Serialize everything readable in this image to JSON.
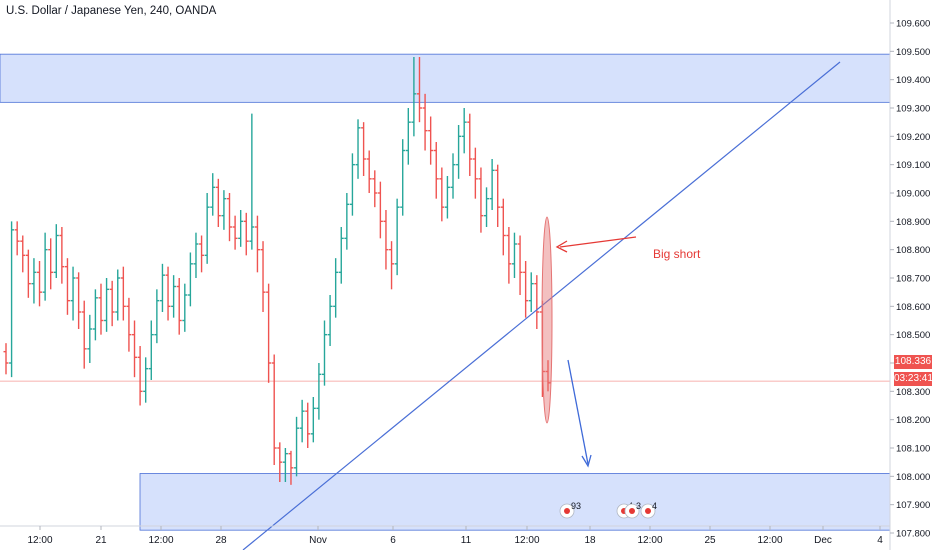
{
  "header": {
    "title": "U.S. Dollar / Japanese Yen, 240, OANDA"
  },
  "annotations": {
    "big_short": "Big short"
  },
  "price_readout": {
    "current": "108.336",
    "countdown": "03:23:41"
  },
  "colors": {
    "up": "#26a69a",
    "down": "#ef5350",
    "zone_fill": "#cfdcfb",
    "zone_stroke": "#4a6fd6",
    "trendline": "#4a6fd6",
    "arrow_red": "#e53935",
    "arrow_blue": "#3f6ad8",
    "marker": "#e57373"
  },
  "chart_data": {
    "type": "candlestick",
    "title": "U.S. Dollar / Japanese Yen, 240, OANDA",
    "ylim": [
      107.75,
      109.65
    ],
    "y_ticks": [
      "107.800",
      "107.900",
      "108.000",
      "108.100",
      "108.200",
      "108.300",
      "108.400",
      "108.500",
      "108.600",
      "108.700",
      "108.800",
      "108.900",
      "109.000",
      "109.100",
      "109.200",
      "109.300",
      "109.400",
      "109.500",
      "109.600"
    ],
    "x_ticks": [
      "12:00",
      "21",
      "12:00",
      "28",
      "Nov",
      "6",
      "11",
      "12:00",
      "18",
      "12:00",
      "25",
      "12:00",
      "Dec",
      "4"
    ],
    "grid": false,
    "price_line": 108.336,
    "zones": [
      {
        "name": "resistance",
        "low": 109.32,
        "high": 109.49
      },
      {
        "name": "support",
        "low": 107.81,
        "high": 108.01
      }
    ],
    "trendline": {
      "from": {
        "x": "28 Oct",
        "y": 107.7
      },
      "to": {
        "x": "28 Nov",
        "y": 109.45
      }
    },
    "event_markers": [
      {
        "label": "9",
        "sub": "3"
      },
      {
        "label": "4",
        "sub": ""
      },
      {
        "label": "3",
        "sub": ""
      },
      {
        "label": "4",
        "sub": ""
      }
    ],
    "series": [
      {
        "values": [
          [
            108.44,
            108.4,
            108.47,
            108.36
          ],
          [
            108.4,
            108.87,
            108.9,
            108.35
          ],
          [
            108.87,
            108.83,
            108.9,
            108.78
          ],
          [
            108.83,
            108.78,
            108.85,
            108.72
          ],
          [
            108.78,
            108.68,
            108.8,
            108.63
          ],
          [
            108.68,
            108.72,
            108.77,
            108.61
          ],
          [
            108.72,
            108.65,
            108.76,
            108.6
          ],
          [
            108.65,
            108.8,
            108.86,
            108.62
          ],
          [
            108.8,
            108.72,
            108.84,
            108.66
          ],
          [
            108.72,
            108.85,
            108.89,
            108.7
          ],
          [
            108.85,
            108.74,
            108.88,
            108.68
          ],
          [
            108.74,
            108.62,
            108.77,
            108.57
          ],
          [
            108.62,
            108.7,
            108.74,
            108.55
          ],
          [
            108.7,
            108.58,
            108.72,
            108.52
          ],
          [
            108.58,
            108.45,
            108.62,
            108.38
          ],
          [
            108.45,
            108.52,
            108.57,
            108.4
          ],
          [
            108.52,
            108.63,
            108.66,
            108.48
          ],
          [
            108.63,
            108.55,
            108.68,
            108.5
          ],
          [
            108.55,
            108.66,
            108.7,
            108.51
          ],
          [
            108.66,
            108.58,
            108.69,
            108.53
          ],
          [
            108.58,
            108.7,
            108.73,
            108.55
          ],
          [
            108.7,
            108.6,
            108.74,
            108.55
          ],
          [
            108.6,
            108.5,
            108.63,
            108.44
          ],
          [
            108.5,
            108.42,
            108.55,
            108.35
          ],
          [
            108.42,
            108.3,
            108.46,
            108.25
          ],
          [
            108.3,
            108.38,
            108.42,
            108.26
          ],
          [
            108.38,
            108.5,
            108.55,
            108.34
          ],
          [
            108.5,
            108.62,
            108.66,
            108.47
          ],
          [
            108.62,
            108.71,
            108.75,
            108.58
          ],
          [
            108.71,
            108.6,
            108.74,
            108.55
          ],
          [
            108.6,
            108.67,
            108.71,
            108.56
          ],
          [
            108.67,
            108.55,
            108.7,
            108.5
          ],
          [
            108.55,
            108.64,
            108.68,
            108.51
          ],
          [
            108.64,
            108.75,
            108.79,
            108.6
          ],
          [
            108.75,
            108.82,
            108.86,
            108.7
          ],
          [
            108.82,
            108.78,
            108.85,
            108.72
          ],
          [
            108.78,
            108.95,
            109.0,
            108.75
          ],
          [
            108.95,
            109.02,
            109.07,
            108.92
          ],
          [
            109.02,
            108.92,
            109.05,
            108.88
          ],
          [
            108.92,
            108.98,
            109.01,
            108.87
          ],
          [
            108.98,
            108.88,
            109.0,
            108.83
          ],
          [
            108.88,
            108.84,
            108.92,
            108.8
          ],
          [
            108.84,
            108.9,
            108.94,
            108.81
          ],
          [
            108.9,
            108.83,
            108.93,
            108.78
          ],
          [
            108.83,
            108.88,
            109.28,
            108.8
          ],
          [
            108.88,
            108.8,
            108.92,
            108.72
          ],
          [
            108.8,
            108.65,
            108.83,
            108.58
          ],
          [
            108.65,
            108.4,
            108.68,
            108.33
          ],
          [
            108.4,
            108.1,
            108.43,
            108.04
          ],
          [
            108.1,
            108.05,
            108.12,
            107.98
          ],
          [
            108.05,
            108.08,
            108.1,
            107.98
          ],
          [
            108.08,
            108.03,
            108.09,
            107.97
          ],
          [
            108.03,
            108.17,
            108.21,
            108.0
          ],
          [
            108.17,
            108.23,
            108.27,
            108.12
          ],
          [
            108.23,
            108.15,
            108.26,
            108.1
          ],
          [
            108.15,
            108.24,
            108.28,
            108.12
          ],
          [
            108.24,
            108.36,
            108.4,
            108.2
          ],
          [
            108.36,
            108.5,
            108.55,
            108.32
          ],
          [
            108.5,
            108.6,
            108.64,
            108.46
          ],
          [
            108.6,
            108.72,
            108.77,
            108.56
          ],
          [
            108.72,
            108.84,
            108.88,
            108.68
          ],
          [
            108.84,
            108.96,
            109.0,
            108.8
          ],
          [
            108.96,
            109.1,
            109.14,
            108.92
          ],
          [
            109.1,
            109.23,
            109.26,
            109.05
          ],
          [
            109.23,
            109.12,
            109.25,
            109.06
          ],
          [
            109.12,
            109.05,
            109.15,
            109.0
          ],
          [
            109.05,
            109.0,
            109.08,
            108.95
          ],
          [
            109.0,
            108.9,
            109.04,
            108.84
          ],
          [
            108.9,
            108.8,
            108.94,
            108.73
          ],
          [
            108.8,
            108.75,
            108.83,
            108.66
          ],
          [
            108.75,
            108.95,
            108.98,
            108.71
          ],
          [
            108.95,
            109.15,
            109.19,
            108.92
          ],
          [
            109.15,
            109.25,
            109.3,
            109.1
          ],
          [
            109.25,
            109.35,
            109.48,
            109.2
          ],
          [
            109.35,
            109.3,
            109.48,
            109.25
          ],
          [
            109.3,
            109.22,
            109.35,
            109.15
          ],
          [
            109.22,
            109.15,
            109.27,
            109.1
          ],
          [
            109.15,
            109.05,
            109.18,
            108.98
          ],
          [
            109.05,
            108.95,
            109.09,
            108.9
          ],
          [
            108.95,
            109.02,
            109.06,
            108.91
          ],
          [
            109.02,
            109.1,
            109.14,
            108.98
          ],
          [
            109.1,
            109.2,
            109.24,
            109.05
          ],
          [
            109.2,
            109.25,
            109.3,
            109.14
          ],
          [
            109.25,
            109.12,
            109.28,
            109.06
          ],
          [
            109.12,
            109.05,
            109.16,
            108.98
          ],
          [
            109.05,
            108.92,
            109.09,
            108.86
          ],
          [
            108.92,
            108.98,
            109.02,
            108.88
          ],
          [
            108.98,
            109.08,
            109.12,
            108.94
          ],
          [
            109.08,
            108.95,
            109.1,
            108.88
          ],
          [
            108.95,
            108.85,
            108.98,
            108.78
          ],
          [
            108.85,
            108.75,
            108.88,
            108.68
          ],
          [
            108.75,
            108.82,
            108.86,
            108.7
          ],
          [
            108.82,
            108.72,
            108.85,
            108.64
          ],
          [
            108.72,
            108.62,
            108.76,
            108.56
          ],
          [
            108.62,
            108.68,
            108.72,
            108.58
          ],
          [
            108.68,
            108.58,
            108.71,
            108.52
          ],
          [
            108.58,
            108.37,
            108.62,
            108.28
          ],
          [
            108.37,
            108.33,
            108.41,
            108.3
          ]
        ]
      }
    ]
  }
}
